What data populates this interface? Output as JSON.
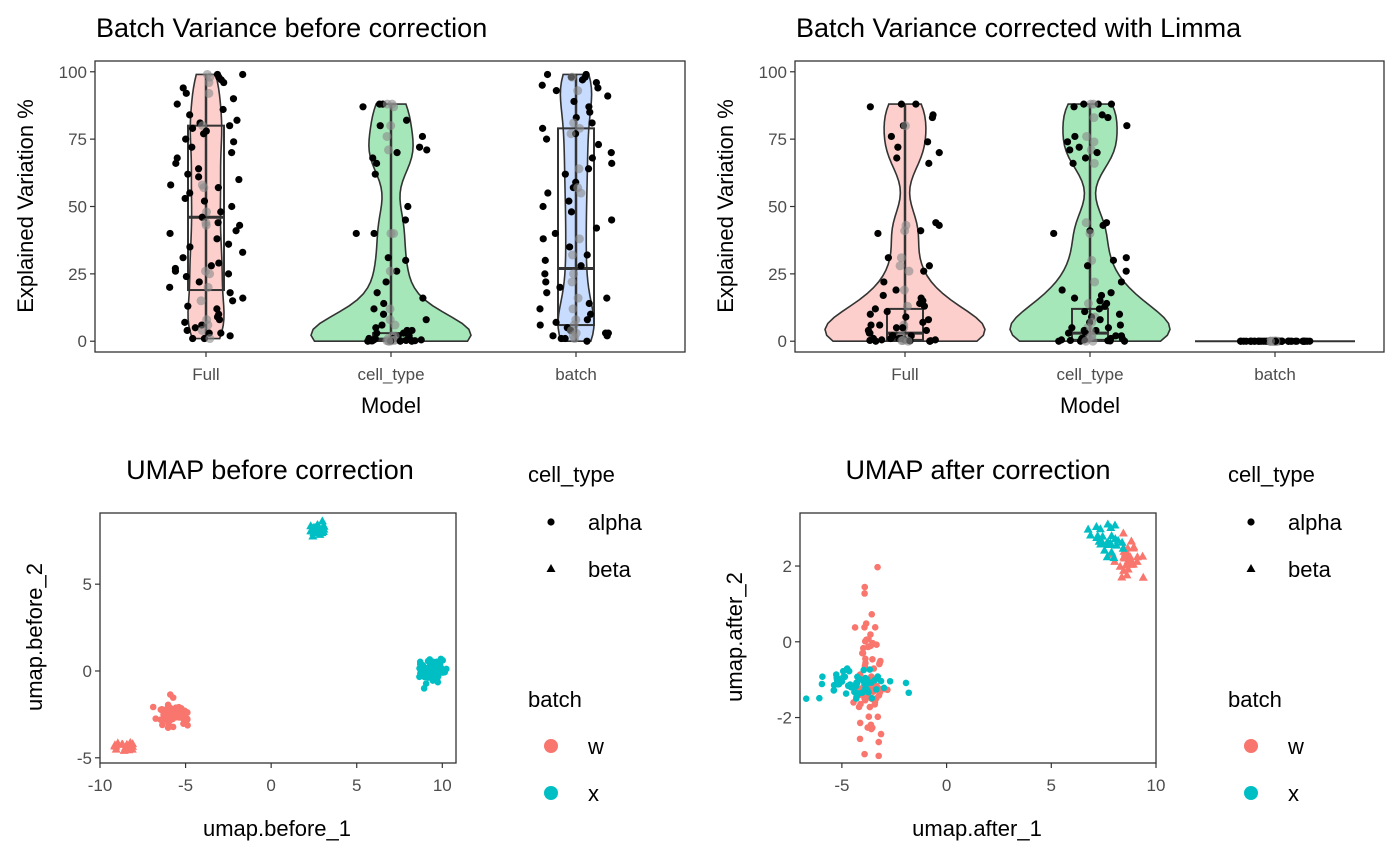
{
  "colors": {
    "w": "#F8766D",
    "x": "#00BFC4",
    "point": "#000000",
    "frame": "#333333",
    "tick_text": "#4d4d4d"
  },
  "chart_data": [
    {
      "type": "violin-box-jitter",
      "title": "Batch Variance before correction",
      "xlabel": "Model",
      "ylabel": "Explained Variation %",
      "categories": [
        "Full",
        "cell_type",
        "batch"
      ],
      "ylim": [
        -4,
        104
      ],
      "yticks": [
        "0",
        "25",
        "50",
        "75",
        "100"
      ],
      "box": [
        {
          "category": "Full",
          "q1": 19,
          "median": 46,
          "q3": 80,
          "min": 1,
          "max": 99
        },
        {
          "category": "cell_type",
          "q1": 0.2,
          "median": 0.8,
          "q3": 3,
          "min": 0,
          "max": 88
        },
        {
          "category": "batch",
          "q1": 6,
          "median": 27,
          "q3": 79,
          "min": 0,
          "max": 99
        }
      ],
      "points": {
        "Full": [
          99,
          99,
          98,
          97,
          96,
          94,
          92,
          90,
          88,
          86,
          84,
          82,
          81,
          80,
          79,
          78,
          77,
          75,
          74,
          72,
          70,
          68,
          66,
          64,
          62,
          61,
          60,
          58,
          57,
          55,
          53,
          52,
          50,
          48,
          46,
          44,
          43,
          41,
          40,
          38,
          36,
          35,
          33,
          31,
          29,
          28,
          27,
          26,
          25,
          24,
          22,
          20,
          18,
          16,
          15,
          13,
          12,
          10,
          9,
          8,
          7,
          6,
          5,
          4,
          3,
          3,
          2,
          1,
          1
        ],
        "cell_type": [
          88,
          88,
          87,
          82,
          80,
          76,
          72,
          71,
          70,
          68,
          66,
          62,
          50,
          45,
          40,
          40,
          31,
          30,
          26,
          22,
          18,
          16,
          14,
          12,
          10,
          8,
          6,
          5,
          4,
          4,
          3,
          3,
          2,
          2,
          2,
          1,
          1,
          1,
          1,
          0.5,
          0.5,
          0.3,
          0.3,
          0.2,
          0.2,
          0.1,
          0.1,
          0,
          0,
          0
        ],
        "batch": [
          99,
          99,
          98,
          98,
          97,
          96,
          95,
          94,
          93,
          91,
          89,
          87,
          85,
          83,
          81,
          79,
          77,
          75,
          73,
          70,
          68,
          66,
          64,
          62,
          59,
          57,
          55,
          52,
          50,
          48,
          45,
          42,
          40,
          38,
          35,
          32,
          30,
          28,
          25,
          22,
          20,
          18,
          16,
          14,
          12,
          10,
          8,
          7,
          6,
          5,
          4,
          3,
          3,
          2,
          2,
          1,
          1,
          0
        ]
      }
    },
    {
      "type": "violin-box-jitter",
      "title": "Batch Variance corrected with Limma",
      "xlabel": "Model",
      "ylabel": "Explained Variation %",
      "categories": [
        "Full",
        "cell_type",
        "batch"
      ],
      "ylim": [
        -4,
        104
      ],
      "yticks": [
        "0",
        "25",
        "50",
        "75",
        "100"
      ],
      "box": [
        {
          "category": "Full",
          "q1": 0.5,
          "median": 3,
          "q3": 12,
          "min": 0,
          "max": 88
        },
        {
          "category": "cell_type",
          "q1": 0.5,
          "median": 3,
          "q3": 12,
          "min": 0,
          "max": 88
        },
        {
          "category": "batch",
          "q1": 0,
          "median": 0,
          "q3": 0,
          "min": 0,
          "max": 0
        }
      ],
      "points": {
        "Full": [
          88,
          88,
          87,
          84,
          83,
          80,
          76,
          74,
          72,
          70,
          68,
          66,
          44,
          43,
          41,
          40,
          31,
          28,
          26,
          22,
          19,
          17,
          16,
          15,
          14,
          13,
          12,
          11,
          10,
          9,
          8,
          7,
          6,
          6,
          5,
          5,
          4,
          4,
          3,
          3,
          2,
          2,
          2,
          1,
          1,
          1,
          1,
          0.5,
          0.5,
          0.5,
          0.3,
          0.2,
          0.1,
          0,
          0,
          0
        ],
        "cell_type": [
          88,
          88,
          88,
          87,
          84,
          83,
          80,
          76,
          74,
          72,
          71,
          70,
          68,
          66,
          44,
          43,
          41,
          40,
          31,
          30,
          28,
          26,
          22,
          19,
          18,
          17,
          16,
          15,
          14,
          13,
          12,
          11,
          10,
          9,
          8,
          7,
          6,
          5,
          5,
          4,
          4,
          3,
          3,
          2,
          2,
          1,
          1,
          1,
          0.5,
          0.5,
          0.3,
          0.2,
          0.1,
          0,
          0,
          0
        ],
        "batch": [
          0,
          0,
          0,
          0,
          0,
          0,
          0,
          0,
          0,
          0,
          0,
          0,
          0,
          0,
          0,
          0,
          0,
          0,
          0,
          0,
          0,
          0,
          0,
          0,
          0,
          0,
          0,
          0,
          0,
          0,
          0,
          0,
          0,
          0,
          0,
          0,
          0,
          0,
          0,
          0
        ]
      }
    },
    {
      "type": "scatter",
      "title": "UMAP before correction",
      "xlabel": "umap.before_1",
      "ylabel": "umap.before_2",
      "xlim": [
        -10,
        10.8
      ],
      "ylim": [
        -5.3,
        9.1
      ],
      "xticks": [
        "-10",
        "-5",
        "0",
        "5",
        "10"
      ],
      "yticks": [
        "-5",
        "0",
        "5"
      ],
      "clusters": [
        {
          "batch": "w",
          "cell_type": "alpha",
          "cx": -5.8,
          "cy": -2.5,
          "sx": 0.45,
          "sy": 0.3,
          "n": 70
        },
        {
          "batch": "w",
          "cell_type": "beta",
          "cx": -8.5,
          "cy": -4.3,
          "sx": 0.3,
          "sy": 0.12,
          "n": 20
        },
        {
          "batch": "x",
          "cell_type": "alpha",
          "cx": 9.3,
          "cy": 0.0,
          "sx": 0.35,
          "sy": 0.3,
          "n": 80
        },
        {
          "batch": "x",
          "cell_type": "beta",
          "cx": 2.7,
          "cy": 8.2,
          "sx": 0.25,
          "sy": 0.15,
          "n": 30
        }
      ]
    },
    {
      "type": "scatter",
      "title": "UMAP after correction",
      "xlabel": "umap.after_1",
      "ylabel": "umap.after_2",
      "xlim": [
        -7,
        10
      ],
      "ylim": [
        -3.2,
        3.4
      ],
      "xticks": [
        "-5",
        "0",
        "5",
        "10"
      ],
      "yticks": [
        "-2",
        "0",
        "2"
      ],
      "clusters": [
        {
          "batch": "w",
          "cell_type": "alpha",
          "cx": -3.7,
          "cy": -1.1,
          "sx": 0.35,
          "sy": 1.0,
          "n": 80
        },
        {
          "batch": "x",
          "cell_type": "alpha",
          "cx": -4.6,
          "cy": -1.1,
          "sx": 1.0,
          "sy": 0.22,
          "n": 60
        },
        {
          "batch": "w",
          "cell_type": "beta",
          "cx": 8.6,
          "cy": 2.2,
          "sx": 0.4,
          "sy": 0.25,
          "n": 30
        },
        {
          "batch": "x",
          "cell_type": "beta",
          "cx": 7.6,
          "cy": 2.6,
          "sx": 0.4,
          "sy": 0.2,
          "n": 30
        }
      ]
    }
  ],
  "legend": {
    "cell_type_title": "cell_type",
    "cell_type_items": [
      "alpha",
      "beta"
    ],
    "batch_title": "batch",
    "batch_items": [
      "w",
      "x"
    ]
  }
}
